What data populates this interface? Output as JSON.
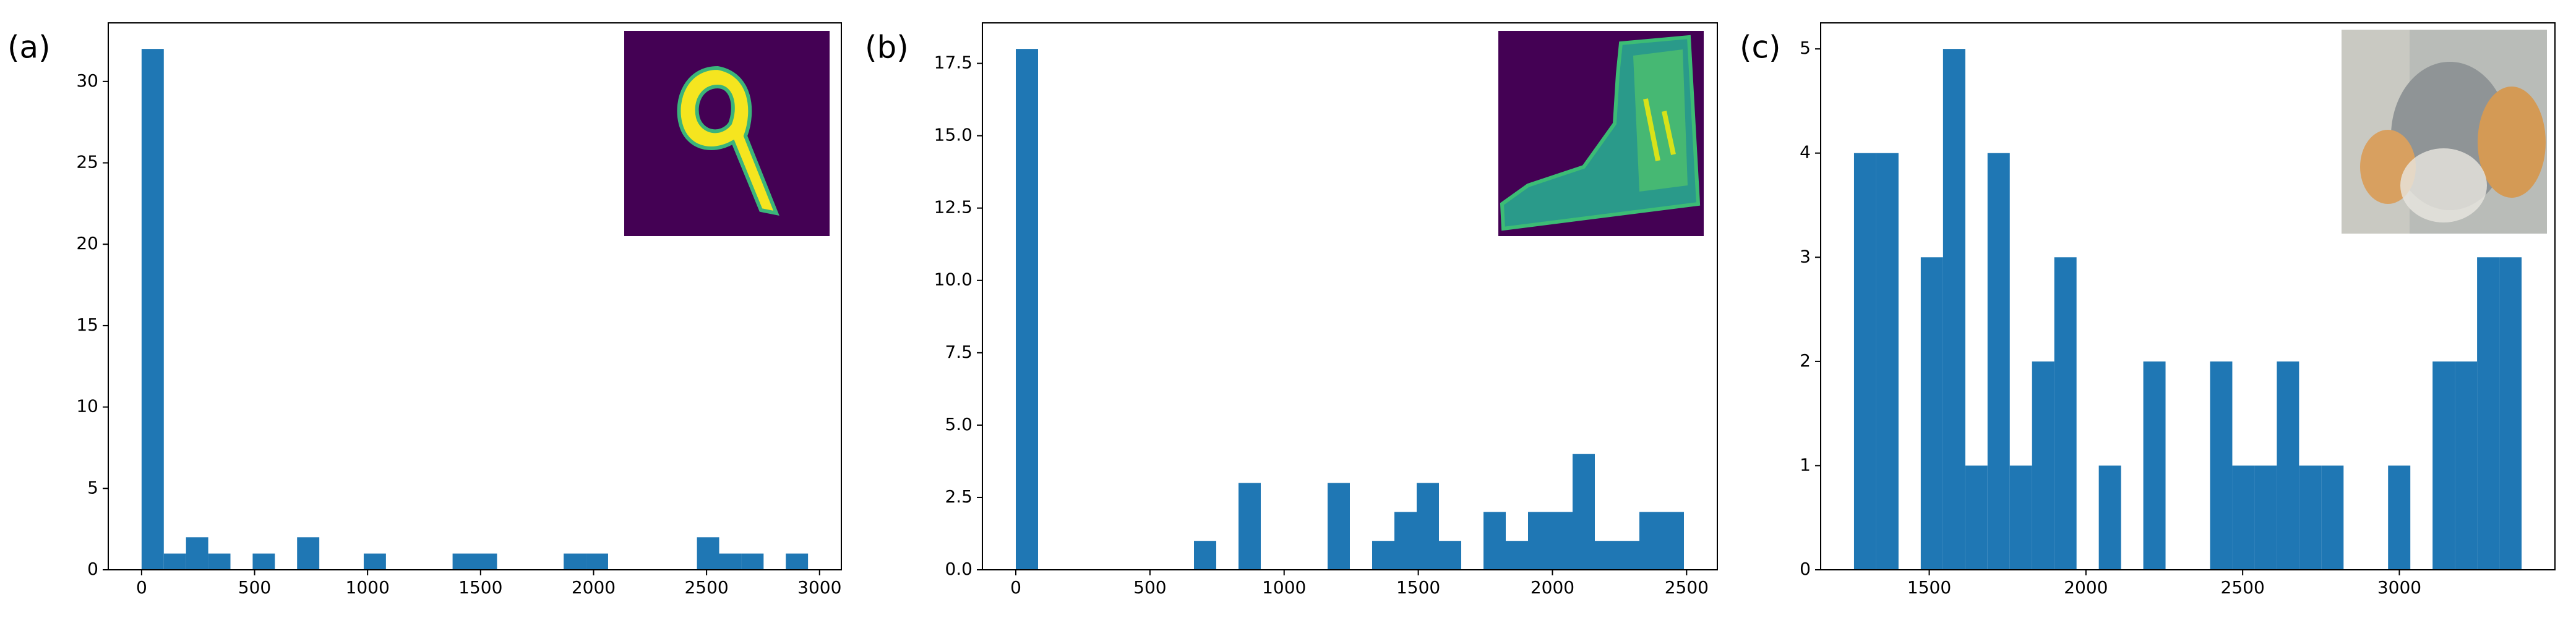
{
  "chart_data": [
    {
      "type": "histogram",
      "panel_label": "(a)",
      "color": "#1f77b4",
      "bins": [
        0,
        98.3,
        196.6,
        294.9,
        393.2,
        491.5,
        589.8,
        688.1,
        786.4,
        884.7,
        983,
        1081.3,
        1179.6,
        1277.9,
        1376.2,
        1474.5,
        1572.8,
        1671.1,
        1769.4,
        1867.7,
        1966,
        2064.3,
        2162.6,
        2260.9,
        2359.2,
        2457.5,
        2555.8,
        2654.1,
        2752.4,
        2850.7,
        2949
      ],
      "counts": [
        32,
        1,
        2,
        1,
        0,
        1,
        0,
        2,
        0,
        0,
        1,
        0,
        0,
        0,
        1,
        1,
        0,
        0,
        0,
        1,
        1,
        0,
        0,
        0,
        0,
        2,
        1,
        1,
        0,
        1
      ],
      "xlim": [
        -147.45,
        3096.45
      ],
      "xticks": [
        0,
        500,
        1000,
        1500,
        2000,
        2500,
        3000
      ],
      "ylim": [
        0,
        33.6
      ],
      "yticks": [
        0,
        5,
        10,
        15,
        20,
        25,
        30
      ]
    },
    {
      "type": "histogram",
      "panel_label": "(b)",
      "color": "#1f77b4",
      "bins": [
        0,
        83,
        166,
        249,
        332,
        415,
        498,
        581,
        664,
        747,
        830,
        913,
        996,
        1079,
        1162,
        1245,
        1328,
        1411,
        1494,
        1577,
        1660,
        1743,
        1826,
        1909,
        1992,
        2075,
        2158,
        2241,
        2324,
        2407,
        2490
      ],
      "counts": [
        18,
        0,
        0,
        0,
        0,
        0,
        0,
        0,
        1,
        0,
        3,
        0,
        0,
        0,
        3,
        0,
        1,
        2,
        3,
        1,
        0,
        2,
        1,
        2,
        2,
        4,
        1,
        1,
        2,
        2
      ],
      "xlim": [
        -124.5,
        2614.5
      ],
      "xticks": [
        0,
        500,
        1000,
        1500,
        2000,
        2500
      ],
      "ylim": [
        0,
        18.9
      ],
      "yticks": [
        {
          "value": 0,
          "label": "0.0"
        },
        2.5,
        {
          "value": 5,
          "label": "5.0"
        },
        7.5,
        {
          "value": 10,
          "label": "10.0"
        },
        12.5,
        {
          "value": 15,
          "label": "15.0"
        },
        17.5
      ]
    },
    {
      "type": "histogram",
      "panel_label": "(c)",
      "color": "#1f77b4",
      "bins": [
        1260,
        1331,
        1402,
        1473,
        1544,
        1615,
        1686,
        1757,
        1828,
        1899,
        1970,
        2041,
        2112,
        2183,
        2254,
        2325,
        2396,
        2467,
        2538,
        2609,
        2680,
        2751,
        2822,
        2893,
        2964,
        3035,
        3106,
        3177,
        3248,
        3319,
        3390
      ],
      "counts": [
        4,
        4,
        0,
        3,
        5,
        1,
        4,
        1,
        2,
        3,
        0,
        1,
        0,
        2,
        0,
        0,
        2,
        1,
        1,
        2,
        1,
        1,
        0,
        0,
        1,
        0,
        2,
        2,
        3,
        3
      ],
      "xlim": [
        1153.5,
        3496.5
      ],
      "xticks": [
        1500,
        2000,
        2500,
        3000
      ],
      "ylim": [
        0,
        5.25
      ],
      "yticks": [
        0,
        1,
        2,
        3,
        4,
        5
      ]
    }
  ]
}
